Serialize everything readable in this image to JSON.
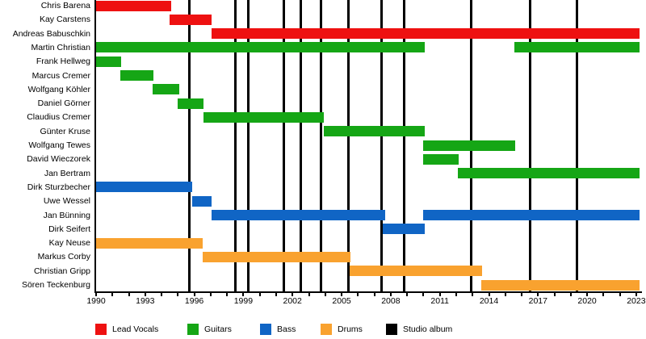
{
  "chart_data": {
    "type": "timeline",
    "description": "Band member tenure timeline (Gantt-style) with studio album markers",
    "x_axis": {
      "start": 1990,
      "end": 2023.2,
      "tick_label_years": [
        1990,
        1993,
        1996,
        1999,
        2002,
        2005,
        2008,
        2011,
        2014,
        2017,
        2020,
        2023
      ],
      "minor_tick_step": 1,
      "grid": "off"
    },
    "legend": {
      "position": "bottom",
      "items": [
        {
          "label": "Lead Vocals",
          "color": "#ee1111"
        },
        {
          "label": "Guitars",
          "color": "#15a615"
        },
        {
          "label": "Bass",
          "color": "#1065c5"
        },
        {
          "label": "Drums",
          "color": "#f9a22f"
        },
        {
          "label": "Studio album",
          "color": "#000000"
        }
      ]
    },
    "members": [
      {
        "name": "Chris Barena",
        "role": "Lead Vocals",
        "bars": [
          [
            1990.0,
            1994.6
          ]
        ]
      },
      {
        "name": "Kay Carstens",
        "role": "Lead Vocals",
        "bars": [
          [
            1994.5,
            1997.05
          ]
        ]
      },
      {
        "name": "Andreas Babuschkin",
        "role": "Lead Vocals",
        "bars": [
          [
            1997.05,
            2023.2
          ]
        ]
      },
      {
        "name": "Martin Christian",
        "role": "Guitars",
        "bars": [
          [
            1990.0,
            2010.1
          ],
          [
            2015.55,
            2023.2
          ]
        ]
      },
      {
        "name": "Frank Hellweg",
        "role": "Guitars",
        "bars": [
          [
            1990.0,
            1991.55
          ]
        ]
      },
      {
        "name": "Marcus Cremer",
        "role": "Guitars",
        "bars": [
          [
            1991.5,
            1993.5
          ]
        ]
      },
      {
        "name": "Wolfgang Köhler",
        "role": "Guitars",
        "bars": [
          [
            1993.45,
            1995.1
          ]
        ]
      },
      {
        "name": "Daniel Görner",
        "role": "Guitars",
        "bars": [
          [
            1995.0,
            1996.55
          ]
        ]
      },
      {
        "name": "Claudius Cremer",
        "role": "Guitars",
        "bars": [
          [
            1996.55,
            2003.9
          ]
        ]
      },
      {
        "name": "Günter Kruse",
        "role": "Guitars",
        "bars": [
          [
            2003.9,
            2010.1
          ]
        ]
      },
      {
        "name": "Wolfgang Tewes",
        "role": "Guitars",
        "bars": [
          [
            2010.0,
            2015.6
          ]
        ]
      },
      {
        "name": "David Wieczorek",
        "role": "Guitars",
        "bars": [
          [
            2010.0,
            2012.15
          ]
        ]
      },
      {
        "name": "Jan Bertram",
        "role": "Guitars",
        "bars": [
          [
            2012.1,
            2023.2
          ]
        ]
      },
      {
        "name": "Dirk Sturzbecher",
        "role": "Bass",
        "bars": [
          [
            1990.0,
            1995.85
          ]
        ]
      },
      {
        "name": "Uwe Wessel",
        "role": "Bass",
        "bars": [
          [
            1995.85,
            1997.05
          ]
        ]
      },
      {
        "name": "Jan Bünning",
        "role": "Bass",
        "bars": [
          [
            1997.05,
            2007.65
          ],
          [
            2010.0,
            2023.2
          ]
        ]
      },
      {
        "name": "Dirk Seifert",
        "role": "Bass",
        "bars": [
          [
            2007.5,
            2010.1
          ]
        ]
      },
      {
        "name": "Kay Neuse",
        "role": "Drums",
        "bars": [
          [
            1990.0,
            1996.5
          ]
        ]
      },
      {
        "name": "Markus Corby",
        "role": "Drums",
        "bars": [
          [
            1996.5,
            2005.55
          ]
        ]
      },
      {
        "name": "Christian Gripp",
        "role": "Drums",
        "bars": [
          [
            2005.5,
            2013.6
          ]
        ]
      },
      {
        "name": "Sören Teckenburg",
        "role": "Drums",
        "bars": [
          [
            2013.55,
            2023.2
          ]
        ]
      }
    ],
    "studio_albums_years": [
      1995.7,
      1998.5,
      1999.3,
      2001.45,
      2002.5,
      2003.75,
      2005.4,
      2007.45,
      2008.8,
      2012.9,
      2016.5,
      2019.4
    ]
  }
}
